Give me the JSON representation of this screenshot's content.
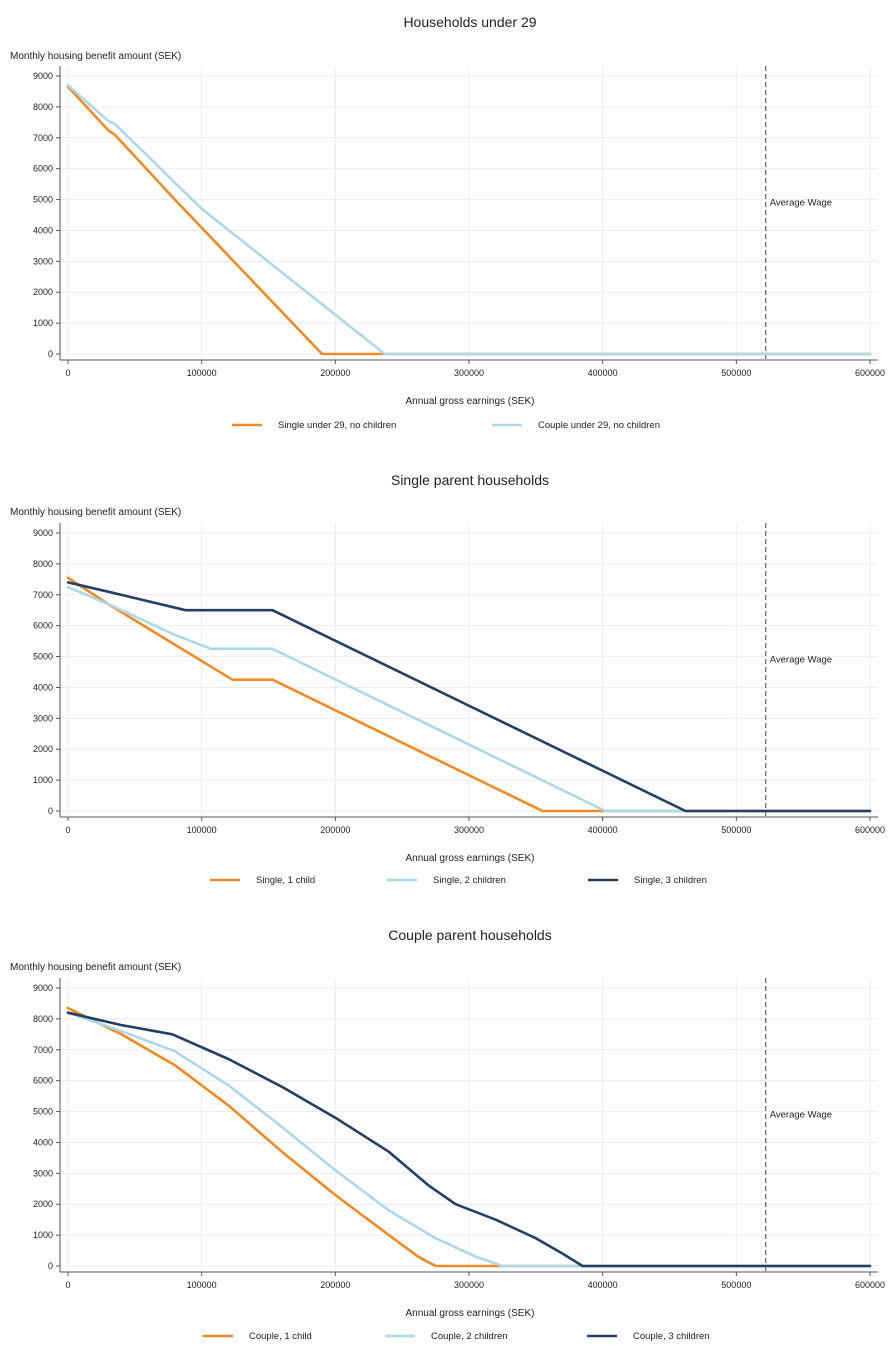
{
  "colors": {
    "orange": "#f08a24",
    "light_blue": "#add8e6",
    "dark_blue": "#243f63",
    "grid": "#ececec",
    "axis": "#555555",
    "reference_line": "#444444"
  },
  "chart_data": [
    {
      "type": "line",
      "title": "Households under 29",
      "xlabel": "Annual gross earnings (SEK)",
      "ylabel": "Monthly housing benefit amount (SEK)",
      "xlim": [
        0,
        600000
      ],
      "ylim": [
        0,
        9000
      ],
      "x_ticks": [
        0,
        100000,
        200000,
        300000,
        400000,
        500000,
        600000
      ],
      "y_ticks": [
        0,
        1000,
        2000,
        3000,
        4000,
        5000,
        6000,
        7000,
        8000,
        9000
      ],
      "grid": true,
      "legend_position": "bottom",
      "reference_line": {
        "x": 522000,
        "label": "Average Wage",
        "style": "dashed"
      },
      "series": [
        {
          "name": "Single under 29, no children",
          "color": "#f08a24",
          "points": [
            [
              0,
              8650
            ],
            [
              30000,
              7250
            ],
            [
              35000,
              7100
            ],
            [
              80000,
              5000
            ],
            [
              190000,
              0
            ],
            [
              600000,
              0
            ]
          ]
        },
        {
          "name": "Couple under 29, no children",
          "color": "#add8e6",
          "points": [
            [
              0,
              8700
            ],
            [
              30000,
              7550
            ],
            [
              35000,
              7450
            ],
            [
              100000,
              4700
            ],
            [
              237000,
              0
            ],
            [
              600000,
              0
            ]
          ]
        }
      ]
    },
    {
      "type": "line",
      "title": "Single parent households",
      "xlabel": "Annual gross earnings (SEK)",
      "ylabel": "Monthly housing benefit amount (SEK)",
      "xlim": [
        0,
        600000
      ],
      "ylim": [
        0,
        9000
      ],
      "x_ticks": [
        0,
        100000,
        200000,
        300000,
        400000,
        500000,
        600000
      ],
      "y_ticks": [
        0,
        1000,
        2000,
        3000,
        4000,
        5000,
        6000,
        7000,
        8000,
        9000
      ],
      "grid": true,
      "legend_position": "bottom",
      "reference_line": {
        "x": 522000,
        "label": "Average Wage",
        "style": "dashed"
      },
      "series": [
        {
          "name": "Single, 1 child",
          "color": "#f08a24",
          "points": [
            [
              0,
              7550
            ],
            [
              30000,
              6700
            ],
            [
              123000,
              4250
            ],
            [
              153000,
              4250
            ],
            [
              355000,
              0
            ],
            [
              600000,
              0
            ]
          ]
        },
        {
          "name": "Single, 2 children",
          "color": "#add8e6",
          "points": [
            [
              0,
              7250
            ],
            [
              30000,
              6700
            ],
            [
              80000,
              5700
            ],
            [
              107000,
              5250
            ],
            [
              153000,
              5250
            ],
            [
              402000,
              0
            ],
            [
              600000,
              0
            ]
          ]
        },
        {
          "name": "Single, 3 children",
          "color": "#243f63",
          "points": [
            [
              0,
              7400
            ],
            [
              30000,
              7100
            ],
            [
              88000,
              6500
            ],
            [
              153000,
              6500
            ],
            [
              462000,
              0
            ],
            [
              600000,
              0
            ]
          ]
        }
      ]
    },
    {
      "type": "line",
      "title": "Couple parent households",
      "xlabel": "Annual gross earnings (SEK)",
      "ylabel": "Monthly housing benefit amount (SEK)",
      "xlim": [
        0,
        600000
      ],
      "ylim": [
        0,
        9000
      ],
      "x_ticks": [
        0,
        100000,
        200000,
        300000,
        400000,
        500000,
        600000
      ],
      "y_ticks": [
        0,
        1000,
        2000,
        3000,
        4000,
        5000,
        6000,
        7000,
        8000,
        9000
      ],
      "grid": true,
      "legend_position": "bottom",
      "reference_line": {
        "x": 522000,
        "label": "Average Wage",
        "style": "dashed"
      },
      "series": [
        {
          "name": "Couple, 1 child",
          "color": "#f08a24",
          "points": [
            [
              0,
              8350
            ],
            [
              40000,
              7500
            ],
            [
              80000,
              6500
            ],
            [
              120000,
              5200
            ],
            [
              160000,
              3700
            ],
            [
              200000,
              2300
            ],
            [
              240000,
              1000
            ],
            [
              262000,
              300
            ],
            [
              275000,
              0
            ],
            [
              600000,
              0
            ]
          ]
        },
        {
          "name": "Couple, 2 children",
          "color": "#add8e6",
          "points": [
            [
              0,
              8200
            ],
            [
              40000,
              7600
            ],
            [
              80000,
              6950
            ],
            [
              120000,
              5850
            ],
            [
              160000,
              4500
            ],
            [
              200000,
              3100
            ],
            [
              240000,
              1800
            ],
            [
              275000,
              900
            ],
            [
              305000,
              300
            ],
            [
              325000,
              0
            ],
            [
              600000,
              0
            ]
          ]
        },
        {
          "name": "Couple, 3 children",
          "color": "#243f63",
          "points": [
            [
              0,
              8200
            ],
            [
              40000,
              7800
            ],
            [
              78000,
              7500
            ],
            [
              120000,
              6700
            ],
            [
              160000,
              5800
            ],
            [
              200000,
              4800
            ],
            [
              240000,
              3700
            ],
            [
              270000,
              2600
            ],
            [
              290000,
              2000
            ],
            [
              320000,
              1500
            ],
            [
              350000,
              900
            ],
            [
              370000,
              400
            ],
            [
              385000,
              0
            ],
            [
              600000,
              0
            ]
          ]
        }
      ]
    }
  ]
}
